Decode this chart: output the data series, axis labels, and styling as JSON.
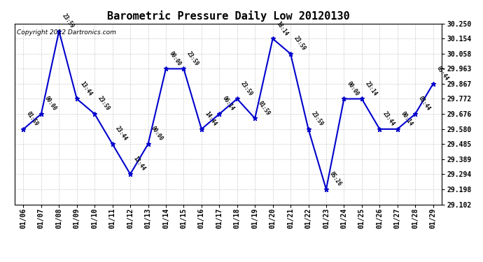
{
  "title": "Barometric Pressure Daily Low 20120130",
  "copyright": "Copyright 2012 Dartronics.com",
  "dates": [
    "01/06",
    "01/07",
    "01/08",
    "01/09",
    "01/10",
    "01/11",
    "01/12",
    "01/13",
    "01/14",
    "01/15",
    "01/16",
    "01/17",
    "01/18",
    "01/19",
    "01/20",
    "01/21",
    "01/22",
    "01/23",
    "01/24",
    "01/25",
    "01/26",
    "01/27",
    "01/28",
    "01/29"
  ],
  "values": [
    29.58,
    29.676,
    30.202,
    29.772,
    29.676,
    29.485,
    29.294,
    29.485,
    29.963,
    29.963,
    29.58,
    29.676,
    29.772,
    29.648,
    30.154,
    30.058,
    29.58,
    29.198,
    29.772,
    29.772,
    29.58,
    29.58,
    29.676,
    29.867
  ],
  "time_labels": [
    "01:59",
    "00:00",
    "23:59",
    "13:44",
    "23:59",
    "23:44",
    "13:44",
    "00:00",
    "00:00",
    "23:59",
    "14:44",
    "06:14",
    "23:59",
    "01:59",
    "18:14",
    "23:59",
    "23:59",
    "05:26",
    "00:00",
    "23:14",
    "23:44",
    "00:14",
    "03:44",
    "05:44"
  ],
  "ylim": [
    29.102,
    30.25
  ],
  "yticks": [
    30.25,
    30.154,
    30.058,
    29.963,
    29.867,
    29.772,
    29.676,
    29.58,
    29.485,
    29.389,
    29.294,
    29.198,
    29.102
  ],
  "line_color": "#0000CC",
  "marker_color": "#0000CC",
  "bg_color": "#ffffff",
  "grid_color": "#cccccc",
  "title_fontsize": 11,
  "tick_fontsize": 7,
  "copyright_fontsize": 6.5
}
